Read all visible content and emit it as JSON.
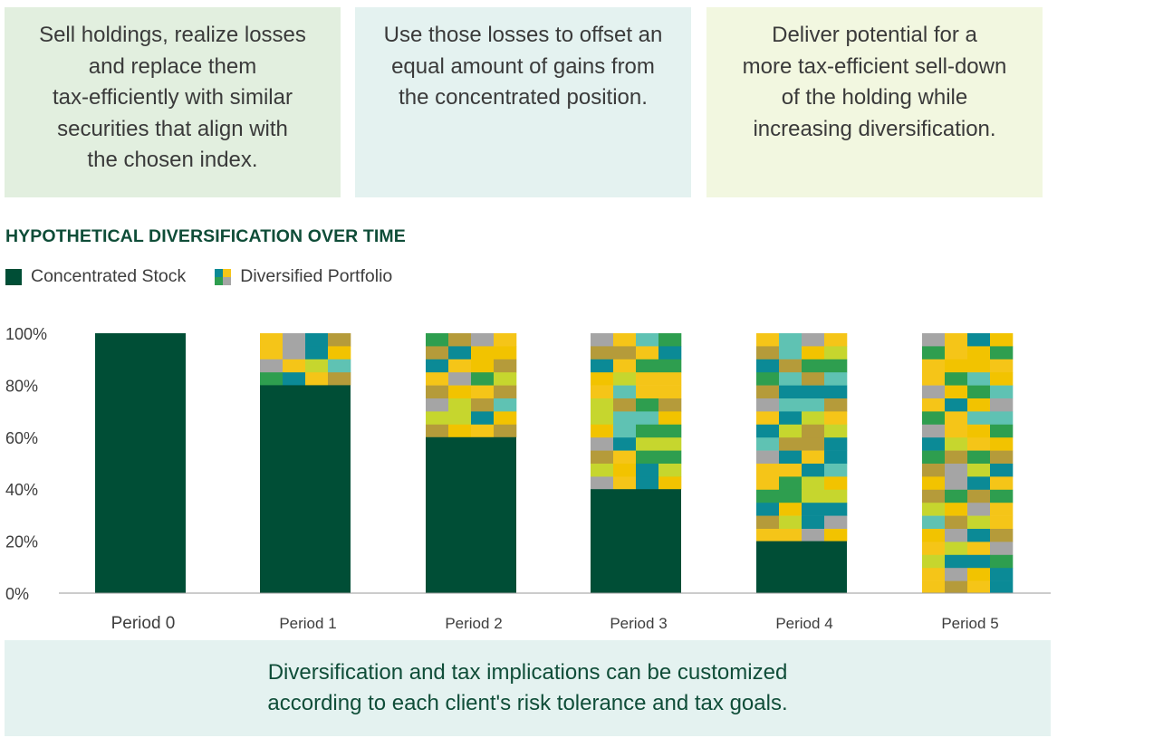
{
  "cards": [
    {
      "lines": [
        "Sell holdings, realize losses",
        "and replace them",
        "tax-efficiently with similar",
        "securities that align with",
        "the chosen index."
      ],
      "color": "#e2efdf"
    },
    {
      "lines": [
        "Use those losses to offset an",
        "equal amount of gains from",
        "the concentrated position."
      ],
      "color": "#e4f2f0"
    },
    {
      "lines": [
        "Deliver potential for a",
        "more tax-efficient sell-down",
        "of the holding while",
        "increasing diversification."
      ],
      "color": "#f2f7e0"
    }
  ],
  "legend": {
    "concentrated_label": "Concentrated Stock",
    "diversified_label": "Diversified Portfolio"
  },
  "chart_data": {
    "type": "bar",
    "stacked": true,
    "title": "HYPOTHETICAL DIVERSIFICATION OVER TIME",
    "categories": [
      "Period 0",
      "Period 1",
      "Period 2",
      "Period 3",
      "Period 4",
      "Period 5"
    ],
    "series": [
      {
        "name": "Concentrated Stock",
        "values": [
          100,
          80,
          60,
          40,
          20,
          0
        ],
        "color": "#004e36"
      },
      {
        "name": "Diversified Portfolio",
        "values": [
          0,
          20,
          40,
          60,
          80,
          100
        ],
        "color": "mosaic"
      }
    ],
    "y_ticks": [
      "0%",
      "20%",
      "40%",
      "60%",
      "80%",
      "100%"
    ],
    "ylim": [
      0,
      100
    ],
    "mosaic_palette": [
      "#0b8a96",
      "#b59b3a",
      "#c6d62e",
      "#f5c518",
      "#a5a5a5",
      "#2e9e4f",
      "#5fc2b3",
      "#f2c300"
    ]
  },
  "footer": {
    "lines": [
      "Diversification and tax implications can be customized",
      "according to each client's risk tolerance and tax goals."
    ]
  }
}
